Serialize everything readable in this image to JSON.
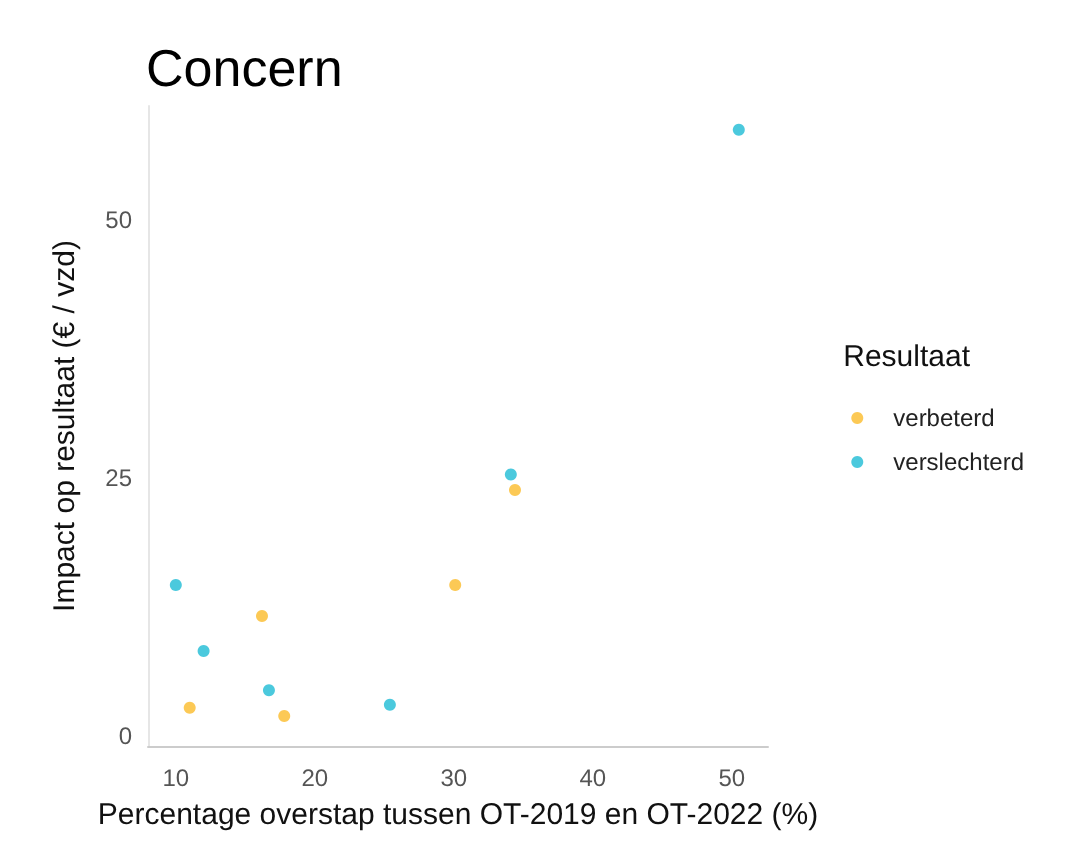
{
  "chart_data": {
    "type": "scatter",
    "title": "Concern",
    "xlabel": "Percentage overstap tussen OT-2019 en OT-2022 (%)",
    "ylabel": "Impact op resultaat (€ / vzd)",
    "legend_title": "Resultaat",
    "legend": "right",
    "grid": false,
    "marker": "circle",
    "xlim": [
      8,
      52.6
    ],
    "xticks": [
      10,
      20,
      30,
      40,
      50
    ],
    "ylim": [
      -1,
      61
    ],
    "yticks": [
      0,
      25,
      50
    ],
    "series": [
      {
        "name": "verbeterd",
        "color": "#fbbc2a",
        "x": [
          11.0,
          16.2,
          17.8,
          30.1,
          34.4
        ],
        "values": [
          2.7,
          11.6,
          1.9,
          14.6,
          23.8
        ]
      },
      {
        "name": "verslechterd",
        "color": "#1ebcd4",
        "x": [
          10.0,
          12.0,
          16.7,
          25.4,
          34.1,
          50.5
        ],
        "values": [
          14.6,
          8.2,
          4.4,
          3.0,
          25.3,
          58.7
        ]
      }
    ]
  }
}
